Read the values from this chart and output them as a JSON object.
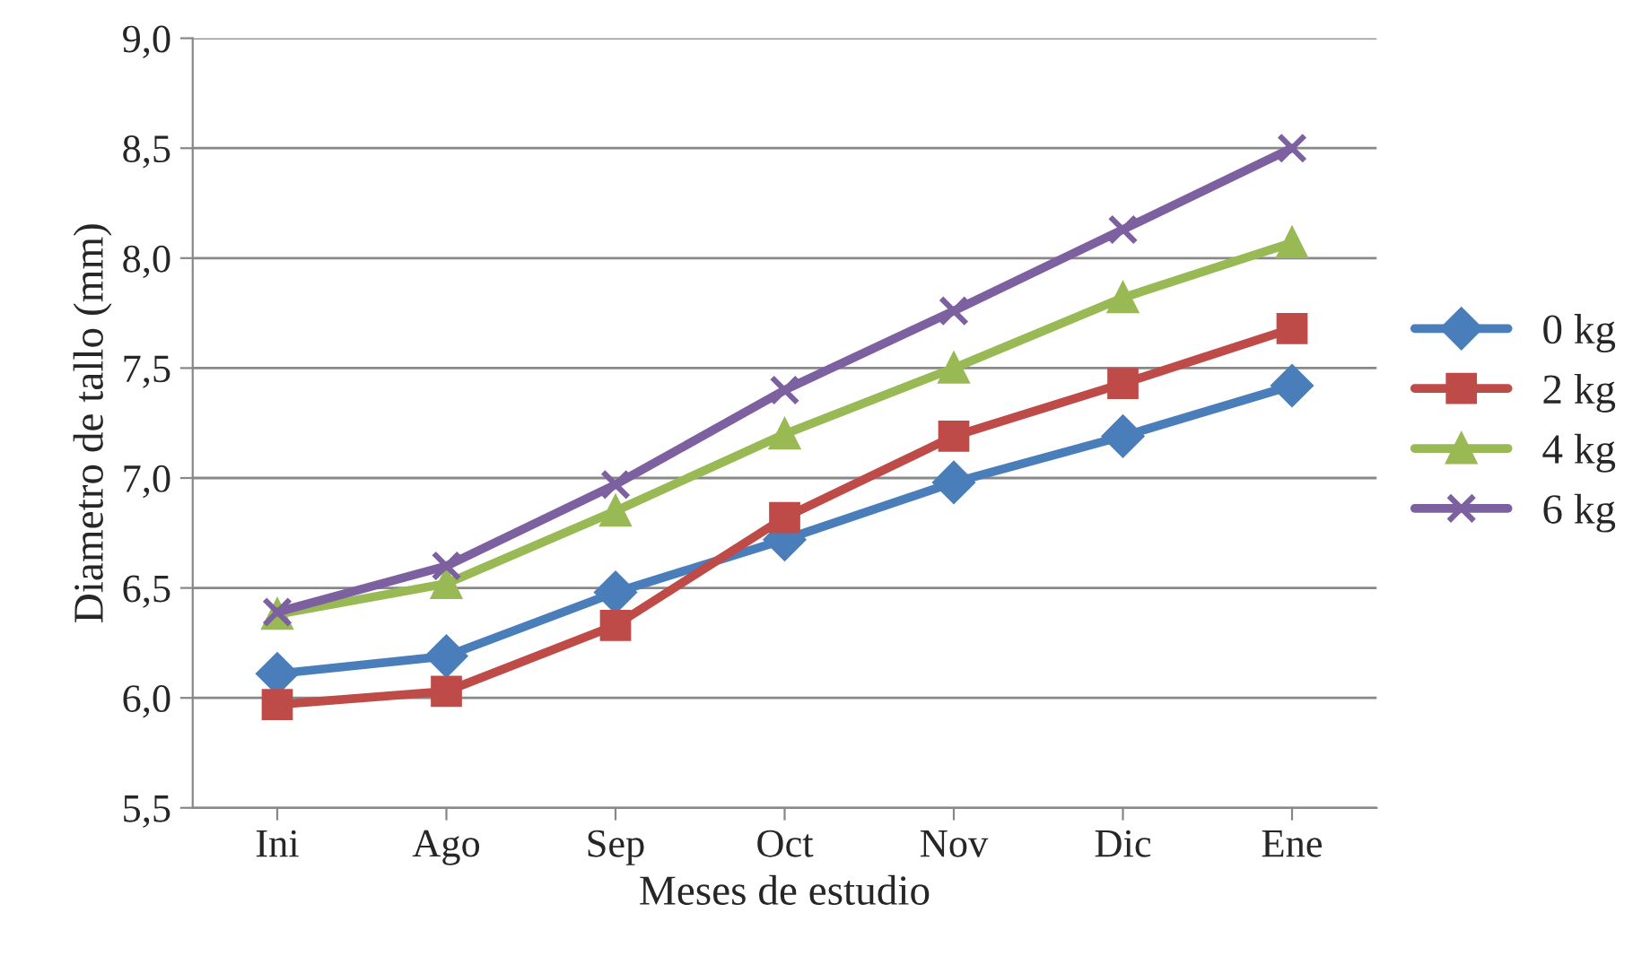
{
  "chart_data": {
    "type": "line",
    "xlabel": "Meses de estudio",
    "ylabel": "Diametro de tallo (mm)",
    "categories": [
      "Ini",
      "Ago",
      "Sep",
      "Oct",
      "Nov",
      "Dic",
      "Ene"
    ],
    "series": [
      {
        "name": "0 kg",
        "color": "#4a7ebb",
        "marker": "diamond",
        "values": [
          6.11,
          6.19,
          6.48,
          6.72,
          6.98,
          7.19,
          7.42
        ]
      },
      {
        "name": "2 kg",
        "color": "#be4b48",
        "marker": "square",
        "values": [
          5.97,
          6.03,
          6.33,
          6.82,
          7.19,
          7.43,
          7.68
        ]
      },
      {
        "name": "4 kg",
        "color": "#98b954",
        "marker": "triangle",
        "values": [
          6.38,
          6.52,
          6.85,
          7.2,
          7.5,
          7.82,
          8.07
        ]
      },
      {
        "name": "6 kg",
        "color": "#7d60a0",
        "marker": "cross",
        "values": [
          6.39,
          6.6,
          6.97,
          7.4,
          7.76,
          8.13,
          8.5
        ]
      }
    ],
    "ylim": [
      5.5,
      9.0
    ],
    "yticks": [
      {
        "value": 5.5,
        "label": "5,5"
      },
      {
        "value": 6.0,
        "label": "6,0"
      },
      {
        "value": 6.5,
        "label": "6,5"
      },
      {
        "value": 7.0,
        "label": "7,0"
      },
      {
        "value": 7.5,
        "label": "7,5"
      },
      {
        "value": 8.0,
        "label": "8,0"
      },
      {
        "value": 8.5,
        "label": "8,5"
      },
      {
        "value": 9.0,
        "label": "9,0"
      }
    ],
    "grid": "y",
    "legend": "right",
    "line_style": "solid"
  }
}
